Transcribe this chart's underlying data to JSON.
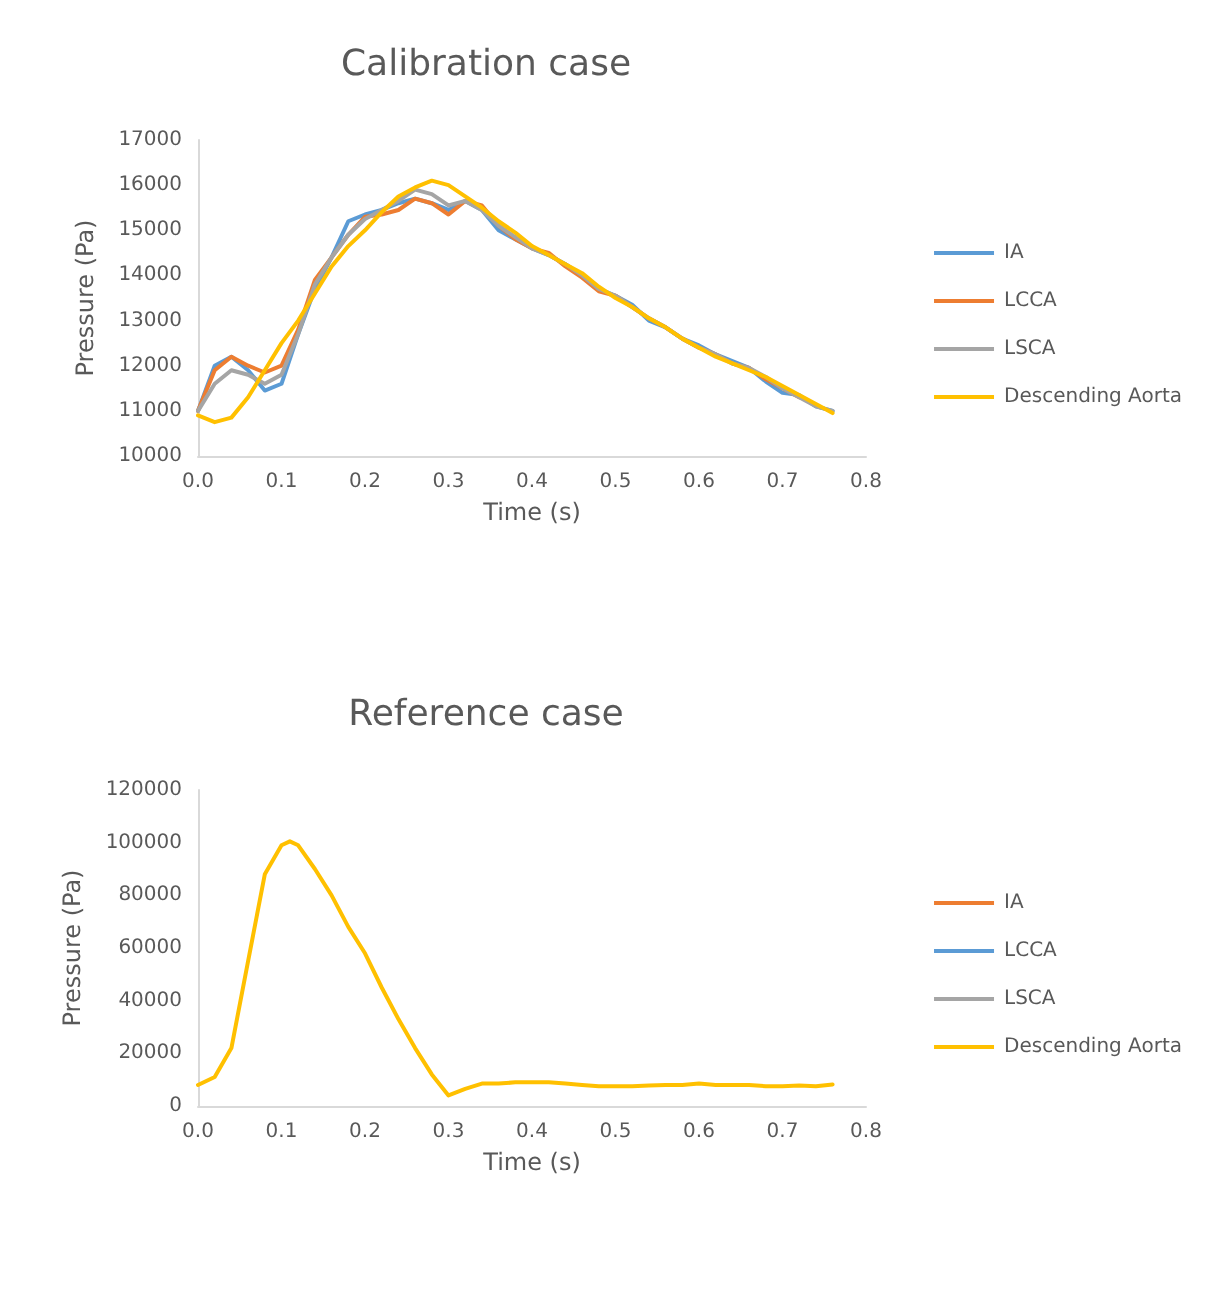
{
  "chart_data": [
    {
      "type": "line",
      "title": "Calibration case",
      "xlabel": "Time (s)",
      "ylabel": "Pressure (Pa)",
      "legend": "right",
      "grid": false,
      "marker": "none",
      "line_style": "solid",
      "x": [
        0,
        0.02,
        0.04,
        0.06,
        0.08,
        0.1,
        0.12,
        0.14,
        0.16,
        0.18,
        0.2,
        0.22,
        0.24,
        0.26,
        0.28,
        0.3,
        0.32,
        0.34,
        0.36,
        0.38,
        0.4,
        0.42,
        0.44,
        0.46,
        0.48,
        0.5,
        0.52,
        0.54,
        0.56,
        0.58,
        0.6,
        0.62,
        0.64,
        0.66,
        0.68,
        0.7,
        0.72,
        0.74,
        0.76
      ],
      "xlim": [
        0,
        0.8
      ],
      "xticks": [
        {
          "value": 0,
          "label": "0.0"
        },
        {
          "value": 0.1,
          "label": "0.1"
        },
        {
          "value": 0.2,
          "label": "0.2"
        },
        {
          "value": 0.3,
          "label": "0.3"
        },
        {
          "value": 0.4,
          "label": "0.4"
        },
        {
          "value": 0.5,
          "label": "0.5"
        },
        {
          "value": 0.6,
          "label": "0.6"
        },
        {
          "value": 0.7,
          "label": "0.7"
        },
        {
          "value": 0.8,
          "label": "0.8"
        }
      ],
      "ylim": [
        10000,
        17000
      ],
      "yticks": [
        10000,
        11000,
        12000,
        13000,
        14000,
        15000,
        16000,
        17000
      ],
      "series": [
        {
          "name": "IA",
          "color": "#5b9bd5",
          "values": [
            11000,
            12000,
            12200,
            11900,
            11450,
            11600,
            12700,
            13700,
            14400,
            15200,
            15350,
            15450,
            15600,
            15700,
            15600,
            15450,
            15650,
            15450,
            15000,
            14800,
            14600,
            14450,
            14250,
            14000,
            13700,
            13550,
            13350,
            13000,
            12850,
            12600,
            12450,
            12250,
            12100,
            11950,
            11650,
            11400,
            11350,
            11100,
            11000
          ]
        },
        {
          "name": "LCCA",
          "color": "#ed7d31",
          "values": [
            11000,
            11900,
            12200,
            12000,
            11850,
            12000,
            12800,
            13900,
            14400,
            14900,
            15300,
            15350,
            15450,
            15700,
            15600,
            15350,
            15650,
            15550,
            15100,
            14800,
            14600,
            14500,
            14200,
            13950,
            13650,
            13550,
            13300,
            13050,
            12850,
            12600,
            12400,
            12250,
            12050,
            11950,
            11700,
            11500,
            11300,
            null,
            null
          ]
        },
        {
          "name": "LSCA",
          "color": "#a5a5a5",
          "values": [
            11000,
            11600,
            11900,
            11800,
            11600,
            11800,
            12700,
            13800,
            14400,
            14900,
            15250,
            15450,
            15650,
            15900,
            15800,
            15550,
            15650,
            15450,
            15100,
            14850,
            14600,
            14450,
            14250,
            14000,
            13700,
            13550,
            13300,
            13050,
            12850,
            12600,
            12400,
            12250,
            12050,
            11950,
            11750,
            11500,
            11300,
            11100,
            11000
          ]
        },
        {
          "name": "Descending Aorta",
          "color": "#ffc000",
          "values": [
            10900,
            10750,
            10850,
            11300,
            11900,
            12500,
            13000,
            13600,
            14200,
            14650,
            15000,
            15400,
            15750,
            15950,
            16100,
            16000,
            15750,
            15500,
            15200,
            14950,
            14650,
            14450,
            14250,
            14050,
            13750,
            13500,
            13300,
            13050,
            12850,
            12600,
            12400,
            12200,
            12050,
            11900,
            11750,
            11550,
            11350,
            11150,
            10950
          ]
        }
      ]
    },
    {
      "type": "line",
      "title": "Reference case",
      "xlabel": "Time (s)",
      "ylabel": "Pressure (Pa)",
      "legend": "right",
      "grid": false,
      "marker": "none",
      "line_style": "solid",
      "x": [
        0,
        0.02,
        0.04,
        0.06,
        0.08,
        0.1,
        0.11,
        0.12,
        0.14,
        0.16,
        0.18,
        0.2,
        0.22,
        0.24,
        0.26,
        0.28,
        0.3,
        0.32,
        0.34,
        0.36,
        0.38,
        0.4,
        0.42,
        0.44,
        0.46,
        0.48,
        0.5,
        0.52,
        0.54,
        0.56,
        0.58,
        0.6,
        0.62,
        0.64,
        0.66,
        0.68,
        0.7,
        0.72,
        0.74,
        0.76
      ],
      "xlim": [
        0,
        0.8
      ],
      "xticks": [
        {
          "value": 0,
          "label": "0.0"
        },
        {
          "value": 0.1,
          "label": "0.1"
        },
        {
          "value": 0.2,
          "label": "0.2"
        },
        {
          "value": 0.3,
          "label": "0.3"
        },
        {
          "value": 0.4,
          "label": "0.4"
        },
        {
          "value": 0.5,
          "label": "0.5"
        },
        {
          "value": 0.6,
          "label": "0.6"
        },
        {
          "value": 0.7,
          "label": "0.7"
        },
        {
          "value": 0.8,
          "label": "0.8"
        }
      ],
      "ylim": [
        0,
        120000
      ],
      "yticks": [
        0,
        20000,
        40000,
        60000,
        80000,
        100000,
        120000
      ],
      "series": [
        {
          "name": "IA",
          "color": "#ed7d31",
          "values": [
            null,
            null,
            null,
            null,
            null,
            null,
            null,
            null,
            null,
            null,
            null,
            null,
            null,
            null,
            null,
            null,
            null,
            null,
            null,
            null,
            null,
            null,
            null,
            null,
            null,
            null,
            null,
            null,
            null,
            null,
            null,
            null,
            null,
            null,
            null,
            null,
            null,
            null,
            null,
            null
          ]
        },
        {
          "name": "LCCA",
          "color": "#5b9bd5",
          "values": [
            null,
            null,
            null,
            null,
            null,
            null,
            null,
            null,
            null,
            null,
            null,
            null,
            null,
            null,
            null,
            null,
            null,
            null,
            null,
            null,
            null,
            null,
            null,
            null,
            null,
            null,
            null,
            null,
            null,
            null,
            null,
            null,
            null,
            null,
            null,
            null,
            null,
            null,
            null,
            null
          ]
        },
        {
          "name": "LSCA",
          "color": "#a5a5a5",
          "values": [
            null,
            null,
            null,
            null,
            null,
            null,
            null,
            null,
            null,
            null,
            null,
            null,
            null,
            null,
            null,
            null,
            null,
            null,
            null,
            null,
            null,
            null,
            null,
            null,
            null,
            null,
            null,
            null,
            null,
            null,
            null,
            null,
            null,
            null,
            null,
            null,
            null,
            null,
            null,
            null
          ]
        },
        {
          "name": "Descending Aorta",
          "color": "#ffc000",
          "values": [
            8000,
            11000,
            22000,
            55000,
            88000,
            99000,
            100500,
            99000,
            90000,
            80000,
            68000,
            58000,
            45000,
            33000,
            22000,
            12000,
            4000,
            6500,
            8500,
            8500,
            9000,
            9000,
            9000,
            8500,
            8000,
            7500,
            7500,
            7500,
            7800,
            8000,
            8000,
            8500,
            8000,
            8000,
            8000,
            7500,
            7500,
            7800,
            7500,
            8200
          ]
        }
      ]
    }
  ]
}
